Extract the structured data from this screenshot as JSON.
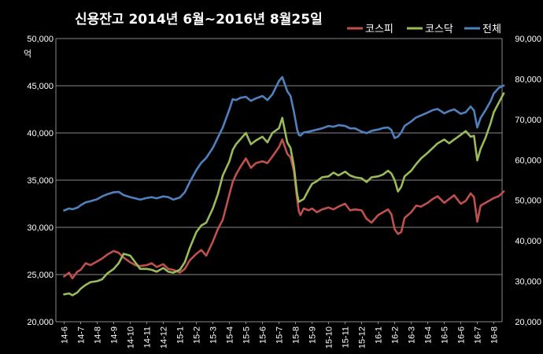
{
  "chart_data": {
    "type": "line",
    "title": "신용잔고 2014년 6월~2016년 8월25일",
    "y_left_unit": "억",
    "y_left": {
      "min": 20000,
      "max": 50000,
      "ticks": [
        "20,000",
        "25,000",
        "30,000",
        "35,000",
        "40,000",
        "45,000",
        "50,000"
      ]
    },
    "y_right": {
      "min": 20000,
      "max": 90000,
      "ticks": [
        "20,000",
        "30,000",
        "40,000",
        "50,000",
        "60,000",
        "70,000",
        "80,000",
        "90,000"
      ]
    },
    "categories": [
      "14-6",
      "14-7",
      "14-8",
      "14-9",
      "14-10",
      "14-11",
      "14-12",
      "15-1",
      "15-2",
      "15-3",
      "15-4",
      "15-5",
      "15-6",
      "15-7",
      "15-8",
      "15-9",
      "15-10",
      "15-11",
      "15-12",
      "16-1",
      "16-2",
      "16-3",
      "16-4",
      "16-5",
      "16-6",
      "16-7",
      "16-8"
    ],
    "grid": true,
    "legend_position": "top-right",
    "series": [
      {
        "name": "코스피",
        "axis": "left",
        "color": "#c0504d",
        "x": [
          0,
          0.3,
          0.5,
          0.8,
          1.0,
          1.3,
          1.6,
          2.0,
          2.3,
          2.6,
          3.0,
          3.3,
          3.6,
          4.0,
          4.3,
          4.6,
          5.0,
          5.3,
          5.6,
          6.0,
          6.3,
          6.6,
          7.0,
          7.3,
          7.6,
          8.0,
          8.3,
          8.6,
          9.0,
          9.3,
          9.6,
          10.0,
          10.2,
          10.4,
          10.7,
          11.0,
          11.3,
          11.6,
          12.0,
          12.3,
          12.6,
          13.0,
          13.2,
          13.5,
          13.7,
          13.9,
          14.1,
          14.2,
          14.3,
          14.5,
          14.8,
          15.0,
          15.3,
          15.6,
          16.0,
          16.3,
          16.6,
          17.0,
          17.3,
          17.6,
          18.0,
          18.3,
          18.6,
          19.0,
          19.3,
          19.6,
          19.8,
          20.0,
          20.2,
          20.4,
          20.6,
          21.0,
          21.3,
          21.6,
          22.0,
          22.3,
          22.6,
          23.0,
          23.3,
          23.6,
          24.0,
          24.3,
          24.6,
          24.8,
          25.0,
          25.2,
          25.5,
          25.8,
          26.0,
          26.3,
          26.6
        ],
        "values": [
          24800,
          25200,
          24600,
          25300,
          25500,
          26200,
          26000,
          26400,
          26700,
          27100,
          27500,
          27300,
          26800,
          26300,
          26000,
          25900,
          26000,
          26200,
          25800,
          26100,
          25600,
          25500,
          25200,
          25600,
          26500,
          27200,
          27600,
          27000,
          28500,
          29800,
          30800,
          33500,
          34800,
          35600,
          36500,
          37300,
          36300,
          36800,
          37000,
          36800,
          37500,
          38500,
          39300,
          37800,
          37400,
          36000,
          33000,
          31700,
          31300,
          32000,
          31800,
          32000,
          31600,
          31900,
          32100,
          31900,
          32200,
          32500,
          31800,
          31900,
          31800,
          30900,
          30500,
          31300,
          31600,
          31900,
          31400,
          29800,
          29300,
          29500,
          31000,
          31600,
          32300,
          32200,
          32600,
          33000,
          33300,
          32600,
          33000,
          33400,
          32500,
          32800,
          33600,
          33200,
          30600,
          32300,
          32600,
          32900,
          33100,
          33300,
          33800
        ]
      },
      {
        "name": "코스닥",
        "axis": "left",
        "color": "#9bbb59",
        "x": [
          0,
          0.3,
          0.5,
          0.8,
          1.0,
          1.3,
          1.6,
          2.0,
          2.3,
          2.6,
          3.0,
          3.3,
          3.6,
          4.0,
          4.3,
          4.6,
          5.0,
          5.3,
          5.6,
          6.0,
          6.3,
          6.6,
          7.0,
          7.3,
          7.6,
          8.0,
          8.3,
          8.6,
          9.0,
          9.3,
          9.6,
          10.0,
          10.2,
          10.4,
          10.7,
          11.0,
          11.3,
          11.6,
          12.0,
          12.3,
          12.6,
          13.0,
          13.2,
          13.5,
          13.7,
          13.9,
          14.1,
          14.2,
          14.3,
          14.5,
          14.8,
          15.0,
          15.3,
          15.6,
          16.0,
          16.3,
          16.6,
          17.0,
          17.3,
          17.6,
          18.0,
          18.3,
          18.6,
          19.0,
          19.3,
          19.6,
          19.8,
          20.0,
          20.2,
          20.4,
          20.6,
          21.0,
          21.3,
          21.6,
          22.0,
          22.3,
          22.6,
          23.0,
          23.3,
          23.6,
          24.0,
          24.3,
          24.6,
          24.8,
          25.0,
          25.2,
          25.5,
          25.8,
          26.0,
          26.3,
          26.6
        ],
        "values": [
          22900,
          23000,
          22800,
          23100,
          23500,
          23900,
          24200,
          24300,
          24500,
          25100,
          25600,
          26200,
          27200,
          27000,
          26300,
          25600,
          25600,
          25500,
          25300,
          25700,
          25300,
          25200,
          25500,
          26300,
          27800,
          29500,
          30200,
          30500,
          32000,
          33500,
          35500,
          37000,
          38200,
          38800,
          39400,
          40000,
          38800,
          39200,
          39600,
          39000,
          40000,
          40500,
          41600,
          39000,
          38400,
          36500,
          33500,
          32700,
          32800,
          33000,
          34000,
          34600,
          34900,
          35300,
          35400,
          35800,
          35500,
          35900,
          35500,
          35300,
          35200,
          34800,
          35300,
          35400,
          35600,
          36000,
          35700,
          35000,
          33800,
          34300,
          35400,
          36000,
          36700,
          37300,
          37900,
          38400,
          38900,
          39300,
          38900,
          39300,
          39800,
          40200,
          39600,
          39700,
          37100,
          38300,
          39500,
          41000,
          42200,
          43200,
          44200
        ]
      },
      {
        "name": "전체",
        "axis": "right",
        "color": "#4f81bd",
        "x": [
          0,
          0.3,
          0.5,
          0.8,
          1.0,
          1.3,
          1.6,
          2.0,
          2.3,
          2.6,
          3.0,
          3.3,
          3.6,
          4.0,
          4.3,
          4.6,
          5.0,
          5.3,
          5.6,
          6.0,
          6.3,
          6.6,
          7.0,
          7.3,
          7.6,
          8.0,
          8.3,
          8.6,
          9.0,
          9.3,
          9.6,
          10.0,
          10.2,
          10.4,
          10.7,
          11.0,
          11.3,
          11.6,
          12.0,
          12.3,
          12.6,
          13.0,
          13.2,
          13.5,
          13.7,
          13.9,
          14.1,
          14.2,
          14.3,
          14.5,
          14.8,
          15.0,
          15.3,
          15.6,
          16.0,
          16.3,
          16.6,
          17.0,
          17.3,
          17.6,
          18.0,
          18.3,
          18.6,
          19.0,
          19.3,
          19.6,
          19.8,
          20.0,
          20.2,
          20.4,
          20.6,
          21.0,
          21.3,
          21.6,
          22.0,
          22.3,
          22.6,
          23.0,
          23.3,
          23.6,
          24.0,
          24.3,
          24.6,
          24.8,
          25.0,
          25.2,
          25.5,
          25.8,
          26.0,
          26.3,
          26.6
        ],
        "values": [
          47500,
          48000,
          47800,
          48200,
          48800,
          49500,
          49800,
          50300,
          51000,
          51500,
          52000,
          52100,
          51300,
          50800,
          50500,
          50200,
          50600,
          50800,
          50500,
          51000,
          50800,
          50200,
          50700,
          52000,
          54500,
          57500,
          59300,
          60500,
          63000,
          65500,
          68000,
          72500,
          75000,
          74800,
          75400,
          75600,
          74600,
          75200,
          75800,
          74800,
          76200,
          79500,
          80500,
          77000,
          75800,
          72000,
          67500,
          66200,
          66000,
          66800,
          67000,
          67200,
          67500,
          67800,
          68400,
          68200,
          68600,
          68400,
          67800,
          67800,
          67000,
          66600,
          67200,
          67500,
          67900,
          68000,
          67400,
          65400,
          65800,
          66800,
          68400,
          69500,
          70500,
          71000,
          71700,
          72300,
          72600,
          71500,
          72100,
          72500,
          71400,
          71800,
          73200,
          72200,
          68000,
          70400,
          72300,
          74500,
          76400,
          77800,
          78400
        ]
      }
    ]
  }
}
